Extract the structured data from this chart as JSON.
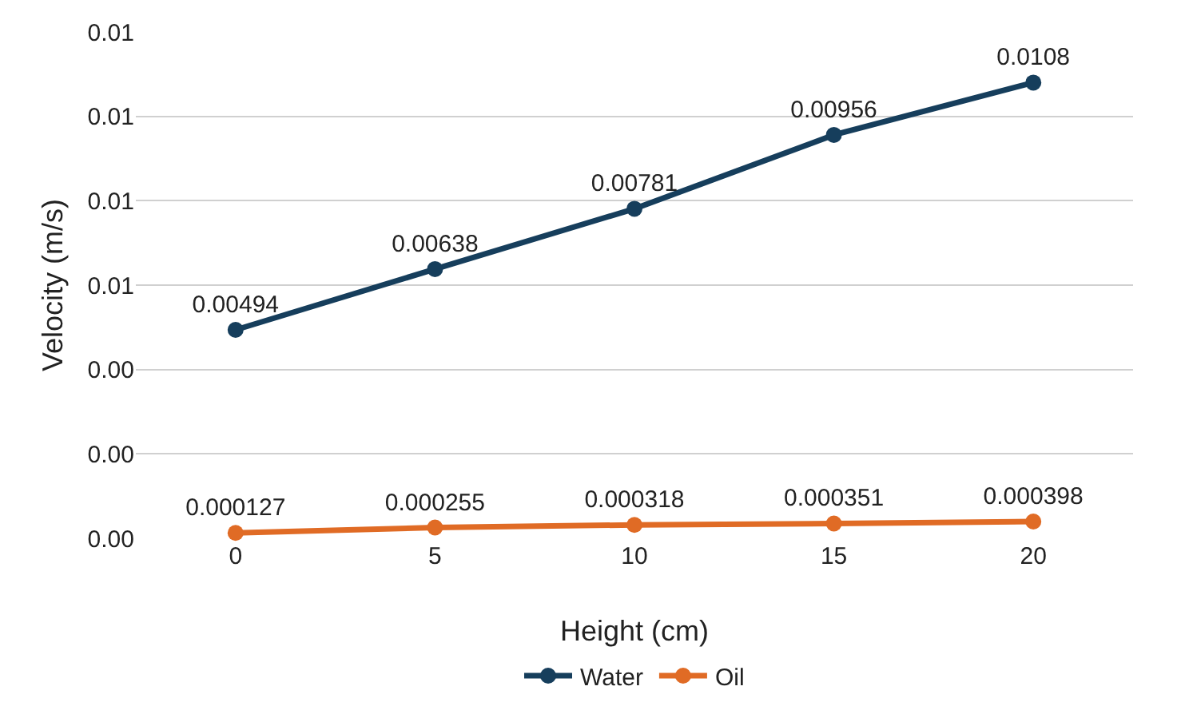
{
  "chart_data": {
    "type": "line",
    "xlabel": "Height (cm)",
    "ylabel": "Velocity (m/s)",
    "categories": [
      "0",
      "5",
      "10",
      "15",
      "20"
    ],
    "series": [
      {
        "name": "Water",
        "color": "#163e5c",
        "values": [
          0.00494,
          0.00638,
          0.00781,
          0.00956,
          0.0108
        ]
      },
      {
        "name": "Oil",
        "color": "#e06b25",
        "values": [
          0.000127,
          0.000255,
          0.000318,
          0.000351,
          0.000398
        ]
      }
    ],
    "ylim": [
      0,
      0.012
    ],
    "yticks": [
      {
        "value": 0,
        "label": "0.00"
      },
      {
        "value": 0.002,
        "label": "0.00"
      },
      {
        "value": 0.004,
        "label": "0.00"
      },
      {
        "value": 0.006,
        "label": "0.01"
      },
      {
        "value": 0.008,
        "label": "0.01"
      },
      {
        "value": 0.01,
        "label": "0.01"
      },
      {
        "value": 0.012,
        "label": "0.01"
      }
    ],
    "data_labels": true,
    "grid": "y",
    "legend": "bottom",
    "marker": "circle",
    "line_style": "solid"
  }
}
